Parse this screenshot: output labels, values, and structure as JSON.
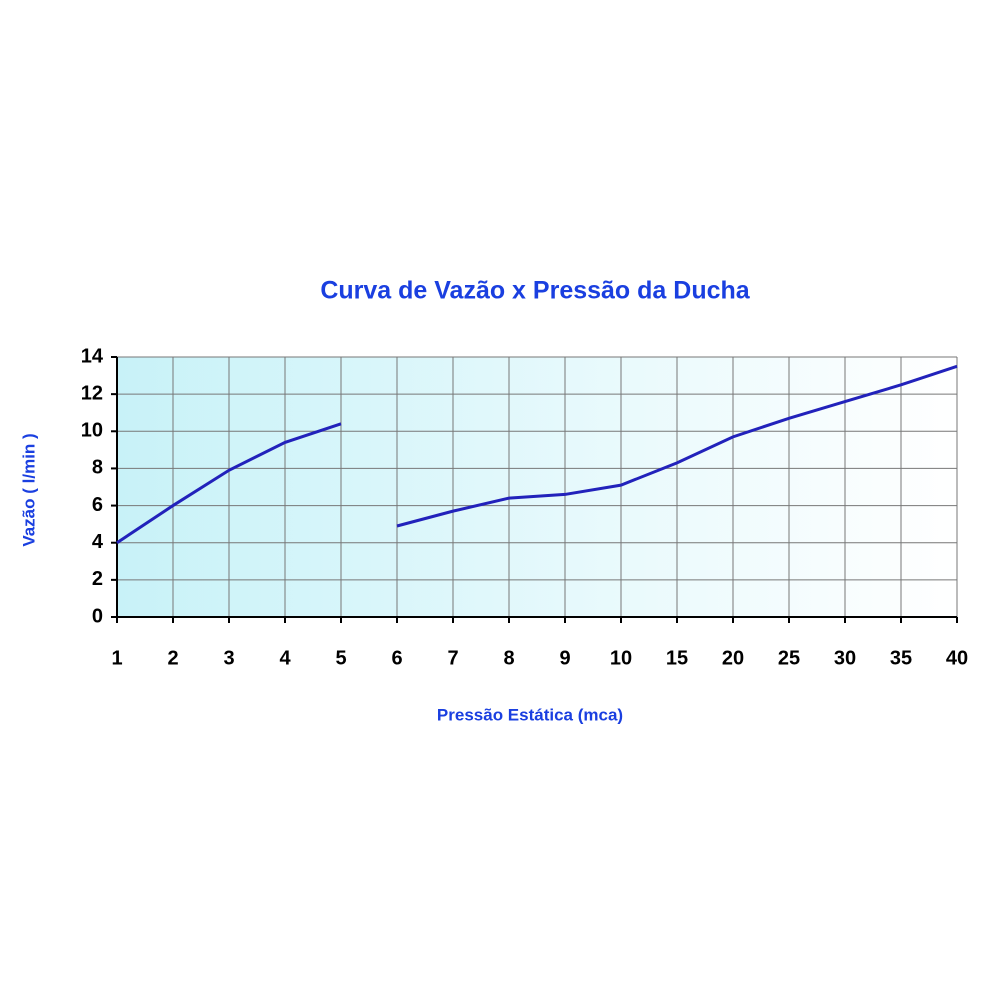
{
  "chart_data": {
    "type": "line",
    "title": "Curva de Vazão x Pressão da Ducha",
    "x_label": "Pressão Estática (mca)",
    "y_label": "Vazão ( l/min )",
    "categories": [
      "1",
      "2",
      "3",
      "4",
      "5",
      "6",
      "7",
      "8",
      "9",
      "10",
      "15",
      "20",
      "25",
      "30",
      "35",
      "40"
    ],
    "series": [
      {
        "color": "#2222bb",
        "values": [
          4.0,
          6.0,
          7.9,
          9.4,
          10.4,
          null,
          null,
          null,
          null,
          null,
          null,
          null,
          null,
          null,
          null,
          null
        ]
      },
      {
        "color": "#2222bb",
        "values": [
          null,
          null,
          null,
          null,
          null,
          4.9,
          5.7,
          6.4,
          6.6,
          7.1,
          8.3,
          9.7,
          10.7,
          11.6,
          12.5,
          13.5
        ]
      }
    ],
    "ylim": [
      0,
      14
    ],
    "yticks": [
      0,
      2,
      4,
      6,
      8,
      10,
      12,
      14
    ],
    "grid": true
  }
}
